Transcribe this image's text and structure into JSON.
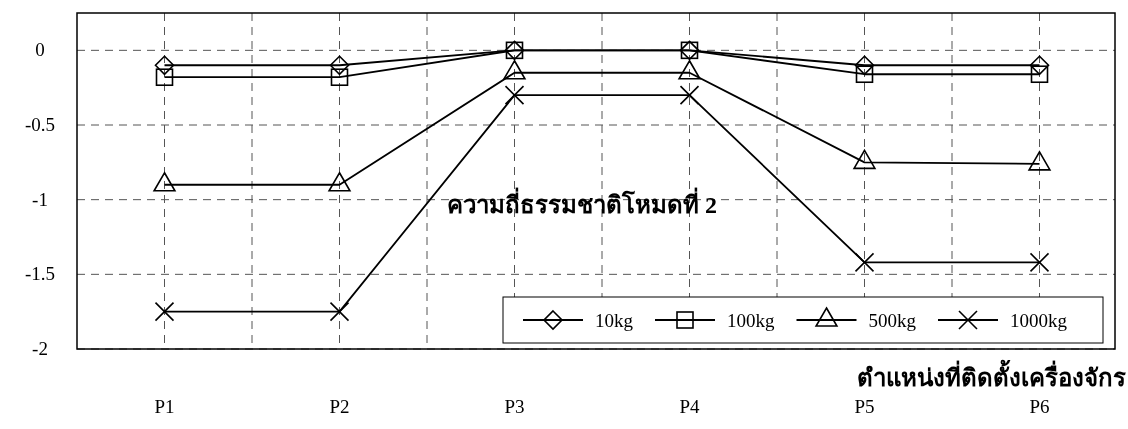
{
  "chart_data": {
    "type": "line",
    "xlabel": "ตำแหน่งที่ติดตั้งเครื่องจักร",
    "annotations": [
      "ความถี่ธรรมชาติโหมดที่ 2"
    ],
    "categories": [
      "P1",
      "P2",
      "P3",
      "P4",
      "P5",
      "P6"
    ],
    "series": [
      {
        "name": "10kg",
        "color": "#000000",
        "marker": "diamond",
        "values": [
          -0.1,
          -0.1,
          0,
          0,
          -0.1,
          -0.1
        ]
      },
      {
        "name": "100kg",
        "color": "#000000",
        "marker": "square",
        "values": [
          -0.18,
          -0.18,
          0,
          0,
          -0.16,
          -0.16
        ]
      },
      {
        "name": "500kg",
        "color": "#000000",
        "marker": "triangle",
        "values": [
          -0.9,
          -0.9,
          -0.15,
          -0.15,
          -0.75,
          -0.76
        ]
      },
      {
        "name": "1000kg",
        "color": "#000000",
        "marker": "cross",
        "values": [
          -1.75,
          -1.75,
          -0.3,
          -0.3,
          -1.42,
          -1.42
        ]
      }
    ],
    "ylim": [
      -2,
      0.25
    ],
    "yticks": [
      0,
      -0.5,
      -1,
      -1.5,
      -2
    ],
    "grid": true,
    "legend": "bottom right",
    "line_style": "solid"
  }
}
